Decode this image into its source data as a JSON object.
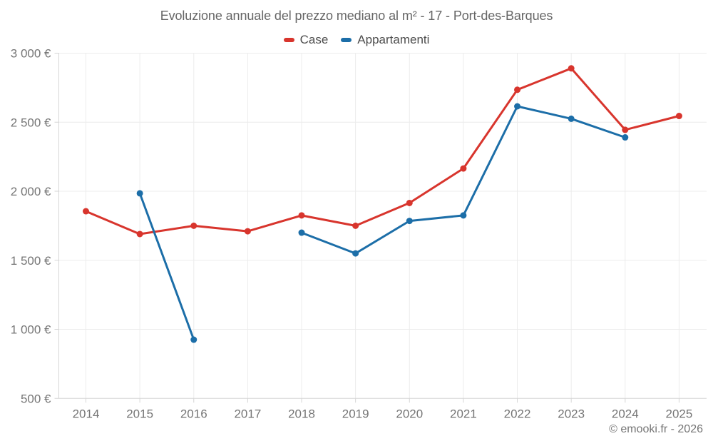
{
  "header": {
    "title": "Evoluzione annuale del prezzo mediano al m² - 17 - Port-des-Barques"
  },
  "legend": {
    "items": [
      {
        "label": "Case",
        "color": "#d8352d"
      },
      {
        "label": "Appartamenti",
        "color": "#1c6ea8"
      }
    ]
  },
  "footer": {
    "attribution": "© emooki.fr - 2026"
  },
  "colors": {
    "case_series": "#d8352d",
    "appartamenti_series": "#1c6ea8",
    "gridline": "#ececec",
    "axis_line": "#d6d6d6",
    "tick_label": "#757575",
    "title_text": "#666666"
  },
  "chart_data": {
    "type": "line",
    "title": "Evoluzione annuale del prezzo mediano al m² - 17 - Port-des-Barques",
    "xlabel": "",
    "ylabel": "",
    "x": [
      2014,
      2015,
      2016,
      2017,
      2018,
      2019,
      2020,
      2021,
      2022,
      2023,
      2024,
      2025
    ],
    "x_tick_labels": [
      "2014",
      "2015",
      "2016",
      "2017",
      "2018",
      "2019",
      "2020",
      "2021",
      "2022",
      "2023",
      "2024",
      "2025"
    ],
    "series": [
      {
        "name": "Case",
        "color": "#d8352d",
        "values": [
          1855,
          1690,
          1750,
          1710,
          1825,
          1750,
          1915,
          2165,
          2735,
          2890,
          2445,
          2545
        ]
      },
      {
        "name": "Appartamenti",
        "color": "#1c6ea8",
        "values": [
          null,
          1985,
          925,
          null,
          1700,
          1550,
          1785,
          1825,
          2615,
          2525,
          2390,
          null
        ]
      }
    ],
    "ylim": [
      500,
      3000
    ],
    "yticks": [
      {
        "value": 500,
        "label": "500 €"
      },
      {
        "value": 1000,
        "label": "1 000 €"
      },
      {
        "value": 1500,
        "label": "1 500 €"
      },
      {
        "value": 2000,
        "label": "2 000 €"
      },
      {
        "value": 2500,
        "label": "2 500 €"
      },
      {
        "value": 3000,
        "label": "3 000 €"
      }
    ],
    "grid": true,
    "legend_position": "top",
    "unit": "€ per m²"
  }
}
